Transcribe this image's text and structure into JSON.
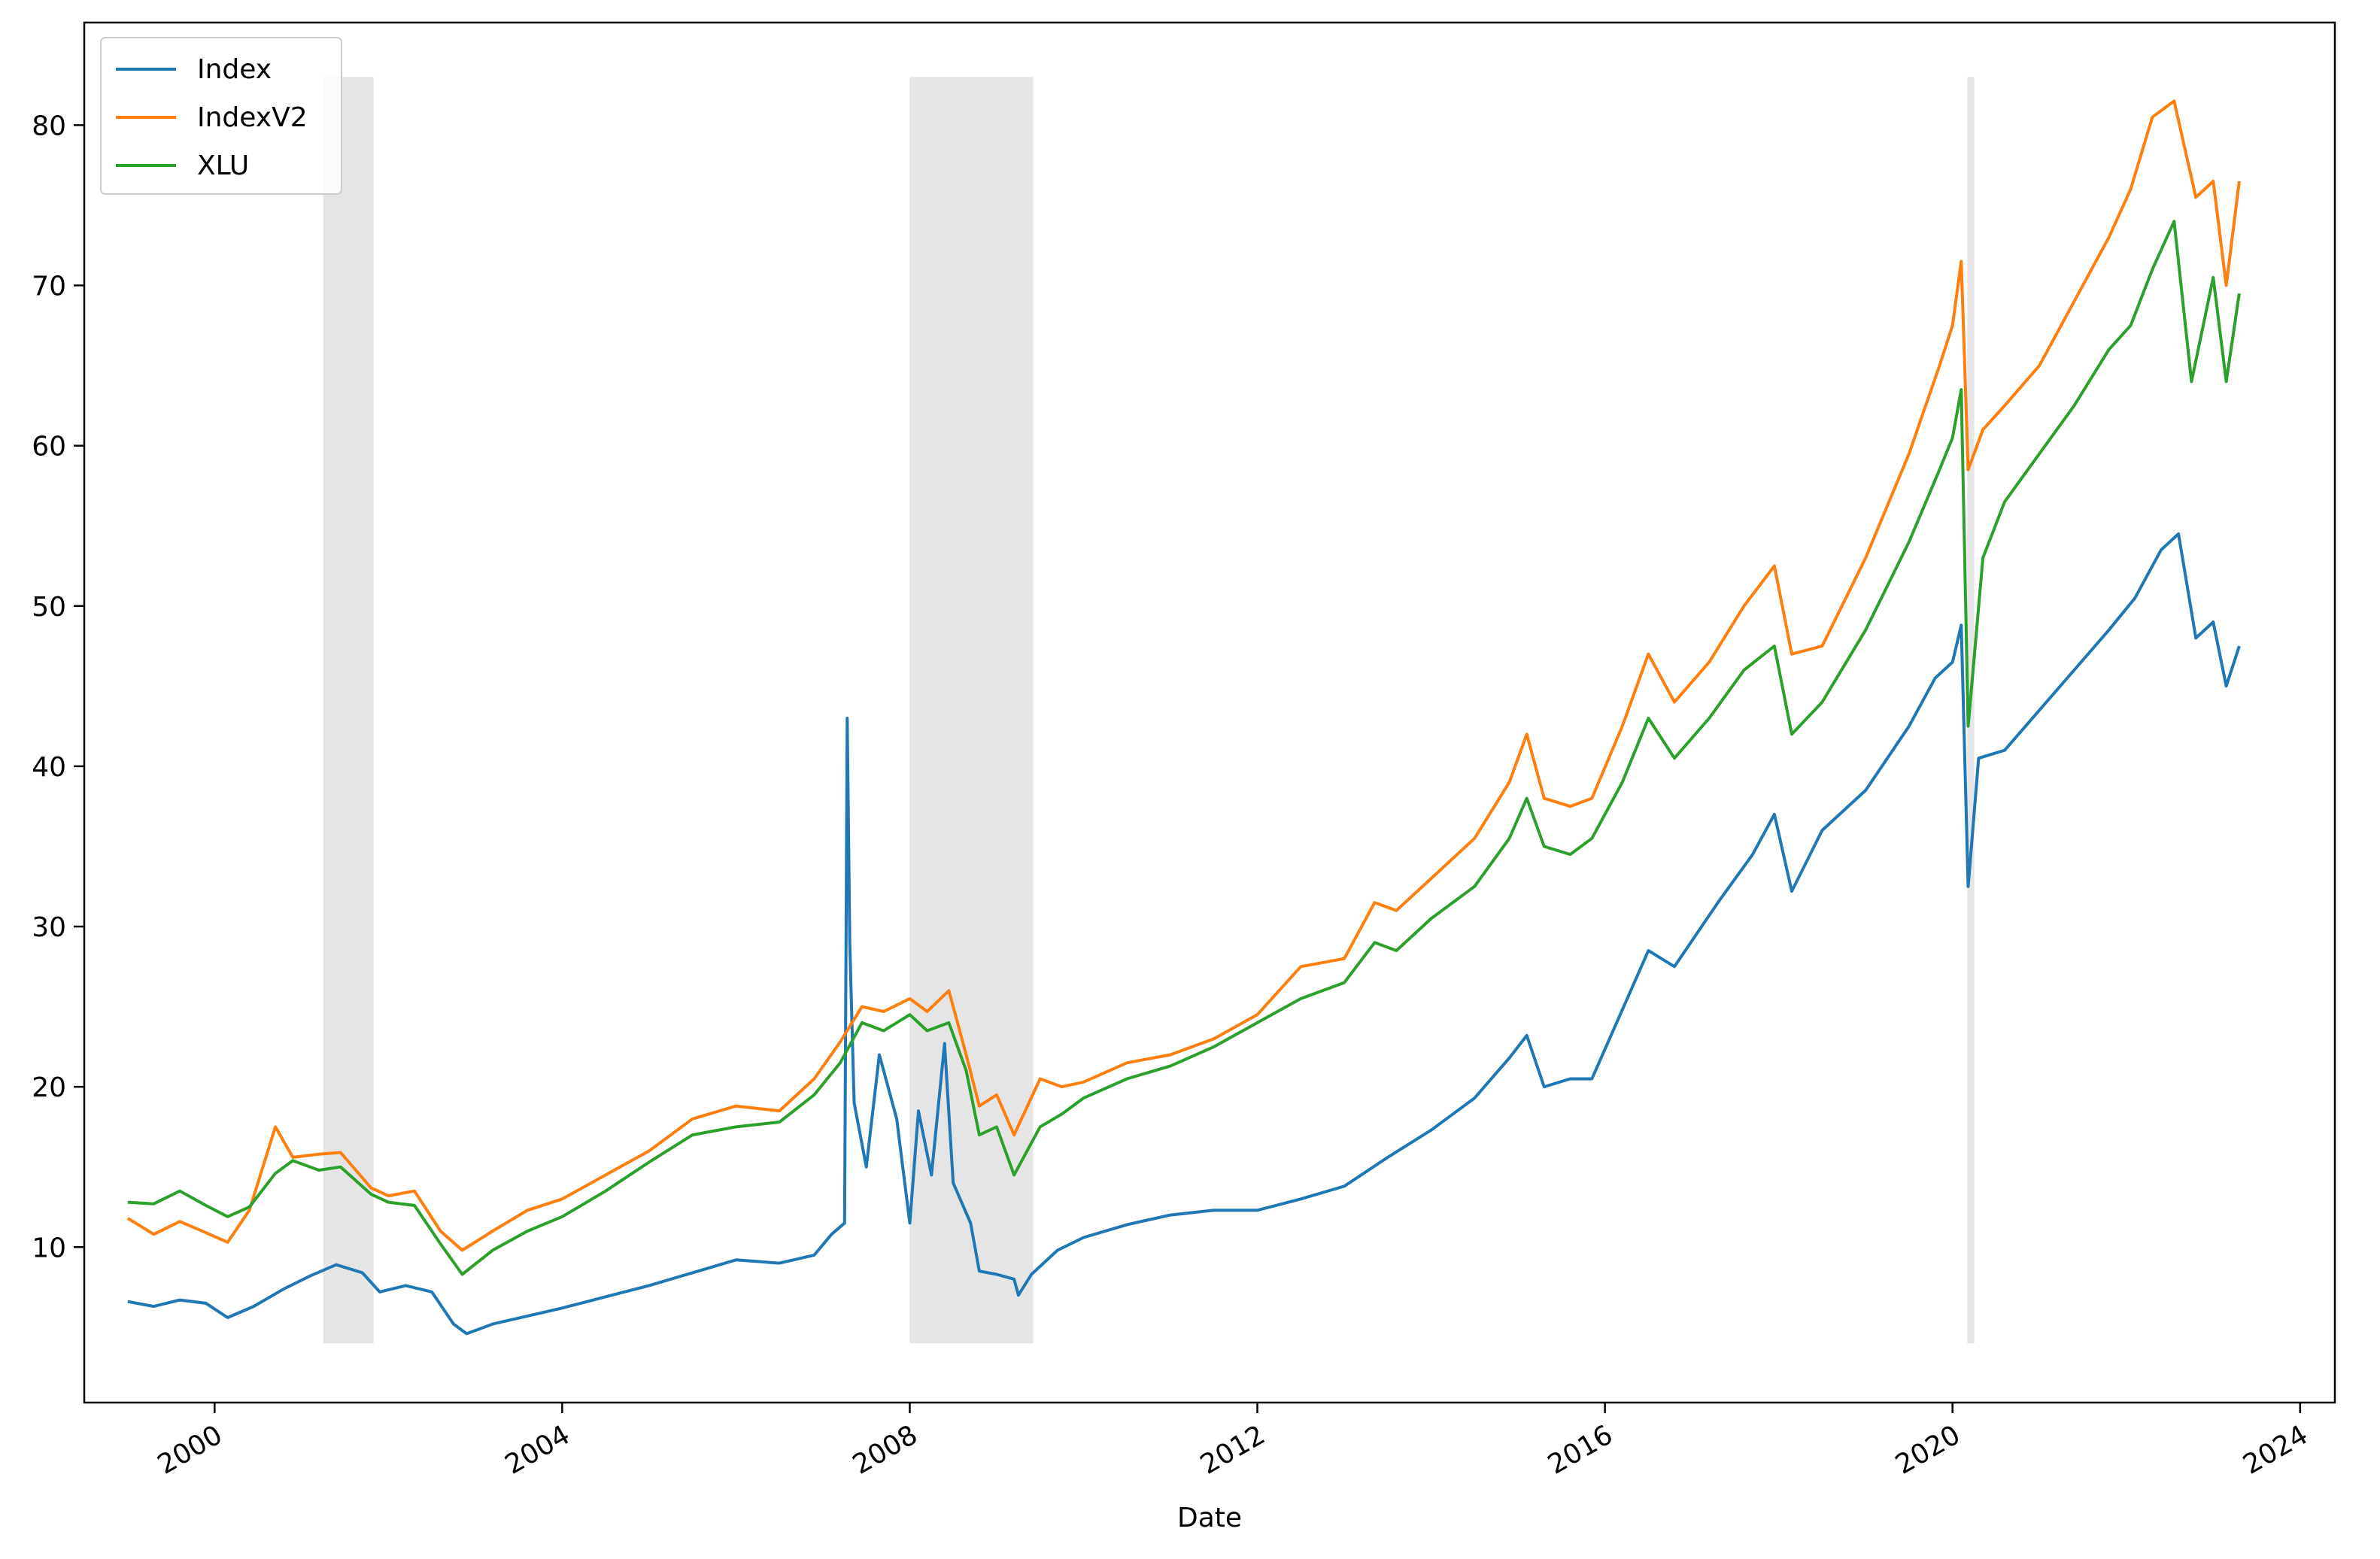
{
  "chart_data": {
    "type": "line",
    "title": "",
    "xlabel": "Date",
    "ylabel": "",
    "xlim": [
      1998.5,
      2024.4
    ],
    "ylim": [
      0.3,
      86.4
    ],
    "x_ticks": [
      2000,
      2004,
      2008,
      2012,
      2016,
      2020,
      2024
    ],
    "x_tick_labels": [
      "2000",
      "2004",
      "2008",
      "2012",
      "2016",
      "2020",
      "2024"
    ],
    "y_ticks": [
      10,
      20,
      30,
      40,
      50,
      60,
      70,
      80
    ],
    "y_tick_labels": [
      "10",
      "20",
      "30",
      "40",
      "50",
      "60",
      "70",
      "80"
    ],
    "grid": false,
    "legend_position": "top-left",
    "shaded_regions": [
      {
        "start": 2001.25,
        "end": 2001.83
      },
      {
        "start": 2008.0,
        "end": 2009.42
      },
      {
        "start": 2020.17,
        "end": 2020.25
      }
    ],
    "shade_ylim": [
      4.0,
      83.0
    ],
    "shade_color": "#e5e5e5",
    "series": [
      {
        "name": "Index",
        "color": "#1f77b4",
        "points": [
          [
            1999.0,
            6.6
          ],
          [
            1999.3,
            6.3
          ],
          [
            1999.6,
            6.7
          ],
          [
            1999.9,
            6.5
          ],
          [
            2000.15,
            5.6
          ],
          [
            2000.45,
            6.3
          ],
          [
            2000.8,
            7.4
          ],
          [
            2001.1,
            8.2
          ],
          [
            2001.4,
            8.9
          ],
          [
            2001.7,
            8.4
          ],
          [
            2001.9,
            7.2
          ],
          [
            2002.2,
            7.6
          ],
          [
            2002.5,
            7.2
          ],
          [
            2002.75,
            5.2
          ],
          [
            2002.9,
            4.6
          ],
          [
            2003.2,
            5.2
          ],
          [
            2003.6,
            5.7
          ],
          [
            2004.0,
            6.2
          ],
          [
            2004.5,
            6.9
          ],
          [
            2005.0,
            7.6
          ],
          [
            2005.5,
            8.4
          ],
          [
            2006.0,
            9.2
          ],
          [
            2006.5,
            9.0
          ],
          [
            2006.9,
            9.5
          ],
          [
            2007.1,
            10.8
          ],
          [
            2007.25,
            11.5
          ],
          [
            2007.28,
            43.0
          ],
          [
            2007.31,
            29.0
          ],
          [
            2007.36,
            19.0
          ],
          [
            2007.5,
            15.0
          ],
          [
            2007.65,
            22.0
          ],
          [
            2007.85,
            18.0
          ],
          [
            2008.0,
            11.5
          ],
          [
            2008.1,
            18.5
          ],
          [
            2008.25,
            14.5
          ],
          [
            2008.4,
            22.7
          ],
          [
            2008.5,
            14.0
          ],
          [
            2008.7,
            11.5
          ],
          [
            2008.8,
            8.5
          ],
          [
            2009.0,
            8.3
          ],
          [
            2009.2,
            8.0
          ],
          [
            2009.25,
            7.0
          ],
          [
            2009.4,
            8.3
          ],
          [
            2009.7,
            9.8
          ],
          [
            2010.0,
            10.6
          ],
          [
            2010.5,
            11.4
          ],
          [
            2011.0,
            12.0
          ],
          [
            2011.5,
            12.3
          ],
          [
            2012.0,
            12.3
          ],
          [
            2012.5,
            13.0
          ],
          [
            2013.0,
            13.8
          ],
          [
            2013.5,
            15.6
          ],
          [
            2014.0,
            17.3
          ],
          [
            2014.5,
            19.3
          ],
          [
            2014.9,
            21.8
          ],
          [
            2015.1,
            23.2
          ],
          [
            2015.3,
            20.0
          ],
          [
            2015.6,
            20.5
          ],
          [
            2015.85,
            20.5
          ],
          [
            2016.2,
            24.8
          ],
          [
            2016.5,
            28.5
          ],
          [
            2016.8,
            27.5
          ],
          [
            2017.3,
            31.5
          ],
          [
            2017.7,
            34.5
          ],
          [
            2017.95,
            37.0
          ],
          [
            2018.15,
            32.2
          ],
          [
            2018.5,
            36.0
          ],
          [
            2019.0,
            38.5
          ],
          [
            2019.5,
            42.5
          ],
          [
            2019.8,
            45.5
          ],
          [
            2020.0,
            46.5
          ],
          [
            2020.1,
            48.8
          ],
          [
            2020.18,
            32.5
          ],
          [
            2020.3,
            40.5
          ],
          [
            2020.6,
            41.0
          ],
          [
            2021.0,
            43.5
          ],
          [
            2021.4,
            46.0
          ],
          [
            2021.8,
            48.5
          ],
          [
            2022.1,
            50.5
          ],
          [
            2022.4,
            53.5
          ],
          [
            2022.6,
            54.5
          ],
          [
            2022.8,
            48.0
          ],
          [
            2023.0,
            49.0
          ],
          [
            2023.15,
            45.0
          ],
          [
            2023.3,
            47.5
          ]
        ]
      },
      {
        "name": "IndexV2",
        "color": "#ff7f0e",
        "points": [
          [
            1999.0,
            11.8
          ],
          [
            1999.3,
            10.8
          ],
          [
            1999.6,
            11.6
          ],
          [
            1999.9,
            10.9
          ],
          [
            2000.15,
            10.3
          ],
          [
            2000.4,
            12.3
          ],
          [
            2000.7,
            17.5
          ],
          [
            2000.9,
            15.6
          ],
          [
            2001.2,
            15.8
          ],
          [
            2001.45,
            15.9
          ],
          [
            2001.8,
            13.7
          ],
          [
            2002.0,
            13.2
          ],
          [
            2002.3,
            13.5
          ],
          [
            2002.6,
            11.0
          ],
          [
            2002.85,
            9.8
          ],
          [
            2003.2,
            11.0
          ],
          [
            2003.6,
            12.3
          ],
          [
            2004.0,
            13.0
          ],
          [
            2004.5,
            14.5
          ],
          [
            2005.0,
            16.0
          ],
          [
            2005.5,
            18.0
          ],
          [
            2006.0,
            18.8
          ],
          [
            2006.5,
            18.5
          ],
          [
            2006.9,
            20.5
          ],
          [
            2007.2,
            22.8
          ],
          [
            2007.45,
            25.0
          ],
          [
            2007.7,
            24.7
          ],
          [
            2008.0,
            25.5
          ],
          [
            2008.2,
            24.7
          ],
          [
            2008.45,
            26.0
          ],
          [
            2008.65,
            22.0
          ],
          [
            2008.8,
            18.8
          ],
          [
            2009.0,
            19.5
          ],
          [
            2009.2,
            17.0
          ],
          [
            2009.5,
            20.5
          ],
          [
            2009.75,
            20.0
          ],
          [
            2010.0,
            20.3
          ],
          [
            2010.5,
            21.5
          ],
          [
            2011.0,
            22.0
          ],
          [
            2011.5,
            23.0
          ],
          [
            2012.0,
            24.5
          ],
          [
            2012.5,
            27.5
          ],
          [
            2013.0,
            28.0
          ],
          [
            2013.35,
            31.5
          ],
          [
            2013.6,
            31.0
          ],
          [
            2014.0,
            33.0
          ],
          [
            2014.5,
            35.5
          ],
          [
            2014.9,
            39.0
          ],
          [
            2015.1,
            42.0
          ],
          [
            2015.3,
            38.0
          ],
          [
            2015.6,
            37.5
          ],
          [
            2015.85,
            38.0
          ],
          [
            2016.2,
            42.5
          ],
          [
            2016.5,
            47.0
          ],
          [
            2016.8,
            44.0
          ],
          [
            2017.2,
            46.5
          ],
          [
            2017.6,
            50.0
          ],
          [
            2017.95,
            52.5
          ],
          [
            2018.15,
            47.0
          ],
          [
            2018.5,
            47.5
          ],
          [
            2019.0,
            53.0
          ],
          [
            2019.5,
            59.5
          ],
          [
            2019.85,
            65.0
          ],
          [
            2020.0,
            67.5
          ],
          [
            2020.1,
            71.5
          ],
          [
            2020.18,
            58.5
          ],
          [
            2020.35,
            61.0
          ],
          [
            2020.6,
            62.5
          ],
          [
            2021.0,
            65.0
          ],
          [
            2021.4,
            69.0
          ],
          [
            2021.8,
            73.0
          ],
          [
            2022.05,
            76.0
          ],
          [
            2022.3,
            80.5
          ],
          [
            2022.55,
            81.5
          ],
          [
            2022.8,
            75.5
          ],
          [
            2023.0,
            76.5
          ],
          [
            2023.15,
            70.0
          ],
          [
            2023.3,
            76.5
          ]
        ]
      },
      {
        "name": "XLU",
        "color": "#2ca02c",
        "points": [
          [
            1999.0,
            12.8
          ],
          [
            1999.3,
            12.7
          ],
          [
            1999.6,
            13.5
          ],
          [
            1999.9,
            12.6
          ],
          [
            2000.15,
            11.9
          ],
          [
            2000.4,
            12.5
          ],
          [
            2000.7,
            14.6
          ],
          [
            2000.9,
            15.4
          ],
          [
            2001.2,
            14.8
          ],
          [
            2001.45,
            15.0
          ],
          [
            2001.8,
            13.3
          ],
          [
            2002.0,
            12.8
          ],
          [
            2002.3,
            12.6
          ],
          [
            2002.6,
            10.2
          ],
          [
            2002.85,
            8.3
          ],
          [
            2003.2,
            9.8
          ],
          [
            2003.6,
            11.0
          ],
          [
            2004.0,
            11.9
          ],
          [
            2004.5,
            13.5
          ],
          [
            2005.0,
            15.3
          ],
          [
            2005.5,
            17.0
          ],
          [
            2006.0,
            17.5
          ],
          [
            2006.5,
            17.8
          ],
          [
            2006.9,
            19.5
          ],
          [
            2007.2,
            21.5
          ],
          [
            2007.45,
            24.0
          ],
          [
            2007.7,
            23.5
          ],
          [
            2008.0,
            24.5
          ],
          [
            2008.2,
            23.5
          ],
          [
            2008.45,
            24.0
          ],
          [
            2008.65,
            21.0
          ],
          [
            2008.8,
            17.0
          ],
          [
            2009.0,
            17.5
          ],
          [
            2009.2,
            14.5
          ],
          [
            2009.5,
            17.5
          ],
          [
            2009.75,
            18.3
          ],
          [
            2010.0,
            19.3
          ],
          [
            2010.5,
            20.5
          ],
          [
            2011.0,
            21.3
          ],
          [
            2011.5,
            22.5
          ],
          [
            2012.0,
            24.0
          ],
          [
            2012.5,
            25.5
          ],
          [
            2013.0,
            26.5
          ],
          [
            2013.35,
            29.0
          ],
          [
            2013.6,
            28.5
          ],
          [
            2014.0,
            30.5
          ],
          [
            2014.5,
            32.5
          ],
          [
            2014.9,
            35.5
          ],
          [
            2015.1,
            38.0
          ],
          [
            2015.3,
            35.0
          ],
          [
            2015.6,
            34.5
          ],
          [
            2015.85,
            35.5
          ],
          [
            2016.2,
            39.0
          ],
          [
            2016.5,
            43.0
          ],
          [
            2016.8,
            40.5
          ],
          [
            2017.2,
            43.0
          ],
          [
            2017.6,
            46.0
          ],
          [
            2017.95,
            47.5
          ],
          [
            2018.15,
            42.0
          ],
          [
            2018.5,
            44.0
          ],
          [
            2019.0,
            48.5
          ],
          [
            2019.5,
            54.0
          ],
          [
            2019.85,
            58.5
          ],
          [
            2020.0,
            60.5
          ],
          [
            2020.1,
            63.5
          ],
          [
            2020.18,
            42.5
          ],
          [
            2020.35,
            53.0
          ],
          [
            2020.6,
            56.5
          ],
          [
            2021.0,
            59.5
          ],
          [
            2021.4,
            62.5
          ],
          [
            2021.8,
            66.0
          ],
          [
            2022.05,
            67.5
          ],
          [
            2022.3,
            71.0
          ],
          [
            2022.55,
            74.0
          ],
          [
            2022.75,
            64.0
          ],
          [
            2023.0,
            70.5
          ],
          [
            2023.15,
            64.0
          ],
          [
            2023.3,
            69.5
          ]
        ]
      }
    ]
  }
}
